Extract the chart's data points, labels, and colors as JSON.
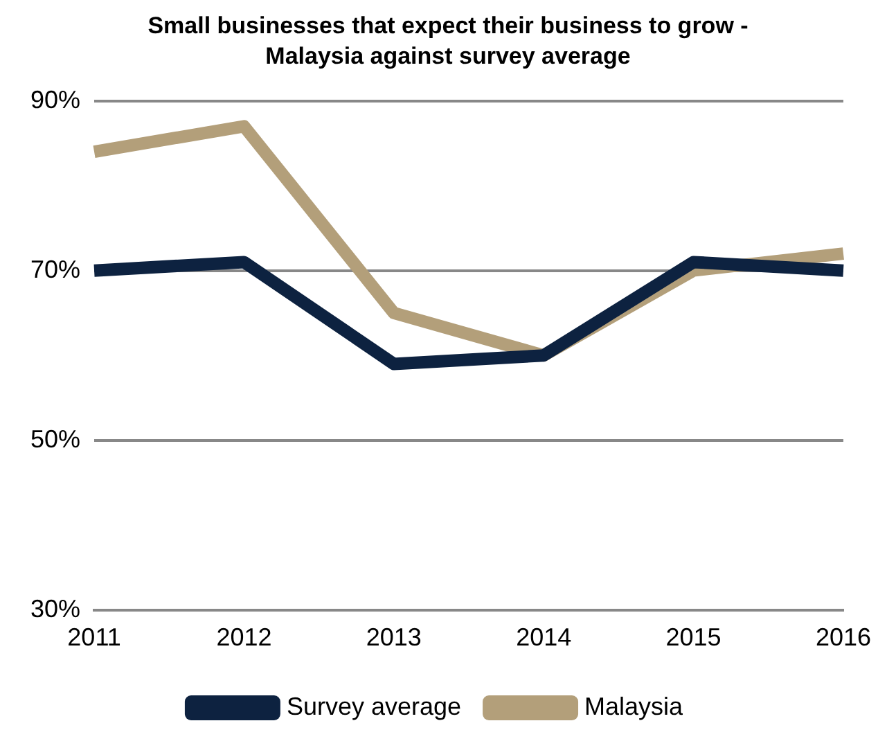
{
  "chart_data": {
    "type": "line",
    "title": "Small businesses that expect their business to grow - Malaysia against survey average",
    "categories": [
      "2011",
      "2012",
      "2013",
      "2014",
      "2015",
      "2016"
    ],
    "series": [
      {
        "name": "Survey average",
        "color": "#0d2240",
        "values": [
          70,
          71,
          59,
          60,
          71,
          70
        ]
      },
      {
        "name": "Malaysia",
        "color": "#b39f7a",
        "values": [
          84,
          87,
          65,
          60,
          70,
          72
        ]
      }
    ],
    "ylim": [
      30,
      90
    ],
    "yticks": [
      {
        "value": 30,
        "label": "30%"
      },
      {
        "value": 50,
        "label": "50%"
      },
      {
        "value": 70,
        "label": "70%"
      },
      {
        "value": 90,
        "label": "90%"
      }
    ],
    "grid": "y",
    "legend": "bottom",
    "marker": "none",
    "line_style": "solid"
  }
}
